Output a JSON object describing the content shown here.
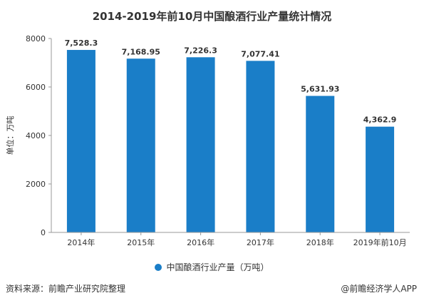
{
  "page": {
    "title": "2014-2019年前10月中国酿酒行业产量统计情况",
    "footer_source": "资料来源：前瞻产业研究院整理",
    "footer_brand": "@前瞻经济学人APP"
  },
  "colors": {
    "bar": "#1a7ec8",
    "axis": "#999999",
    "text": "#333333"
  },
  "chart_data": {
    "type": "bar",
    "title": "2014-2019年前10月中国酿酒行业产量统计情况",
    "xlabel": "",
    "ylabel": "单位：万吨",
    "categories": [
      "2014年",
      "2015年",
      "2016年",
      "2017年",
      "2018年",
      "2019年前10月"
    ],
    "series": [
      {
        "name": "中国酿酒行业产量（万吨）",
        "values": [
          7528.3,
          7168.95,
          7226.3,
          7077.41,
          5631.93,
          4362.9
        ],
        "labels": [
          "7,528.3",
          "7,168.95",
          "7,226.3",
          "7,077.41",
          "5,631.93",
          "4,362.9"
        ]
      }
    ],
    "ylim": [
      0,
      8000
    ],
    "yticks": [
      0,
      2000,
      4000,
      6000,
      8000
    ],
    "grid": false,
    "legend": "bottom"
  }
}
